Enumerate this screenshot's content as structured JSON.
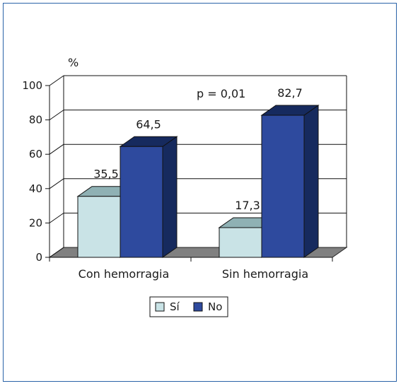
{
  "chart_data": {
    "type": "bar",
    "title": "",
    "ylabel": "%",
    "xlabel": "",
    "ylim": [
      0,
      100
    ],
    "yticks": [
      0,
      20,
      40,
      60,
      80,
      100
    ],
    "categories": [
      "Con hemorragia",
      "Sin hemorragia"
    ],
    "series": [
      {
        "name": "Sí",
        "values": [
          35.5,
          17.3
        ],
        "value_labels": [
          "35,5",
          "17,3"
        ],
        "color": "#c9e3e6",
        "side_color": "#8fb1b4"
      },
      {
        "name": "No",
        "values": [
          64.5,
          82.7
        ],
        "value_labels": [
          "64,5",
          "82,7"
        ],
        "color": "#2e4a9e",
        "side_color": "#162a5e"
      }
    ],
    "annotation": "p = 0,01",
    "grid": true,
    "legend_position": "bottom-center",
    "style": "3d"
  }
}
